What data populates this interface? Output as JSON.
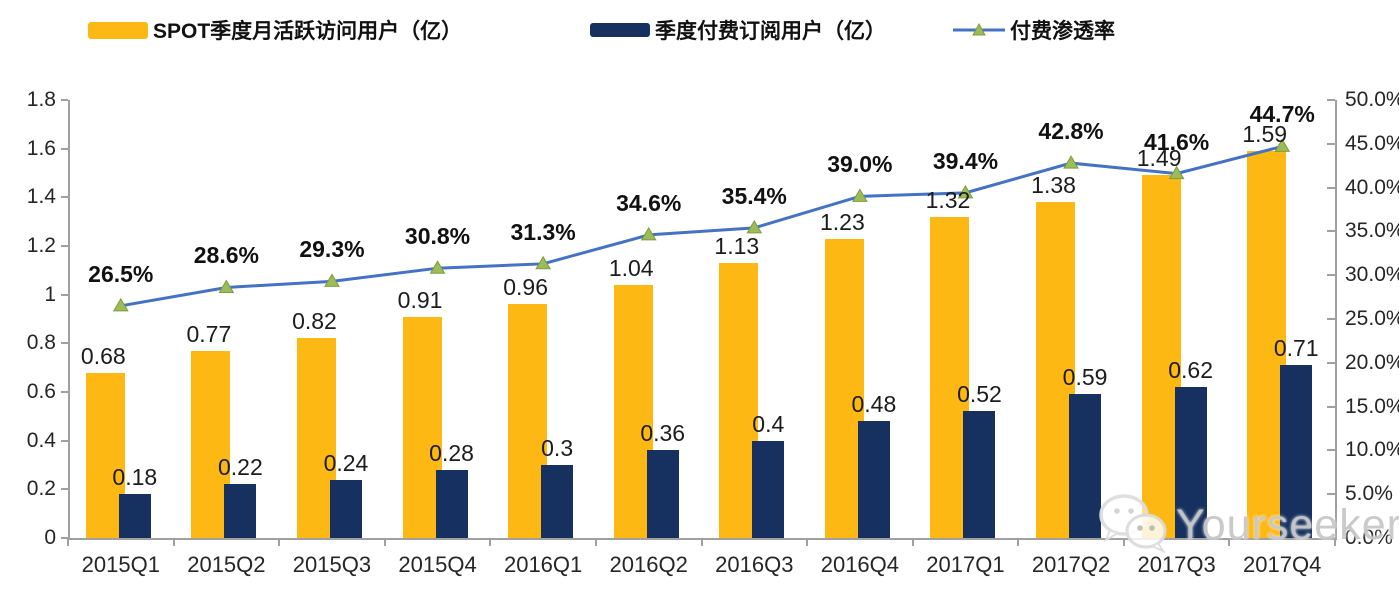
{
  "legend": [
    {
      "label": "SPOT季度月活跃访问用户（亿）",
      "color": "#FDB813",
      "type": "bar"
    },
    {
      "label": "季度付费订阅用户（亿）",
      "color": "#16305F",
      "type": "bar"
    },
    {
      "label": "付费渗透率",
      "color": "#4472C4",
      "marker_color": "#9CBB59",
      "type": "line"
    }
  ],
  "watermark": {
    "text": "Yourseeker",
    "icon": "wechat-icon"
  },
  "chart_data": {
    "type": "bar+line-combo",
    "title": "",
    "categories": [
      "2015Q1",
      "2015Q2",
      "2015Q3",
      "2015Q4",
      "2016Q1",
      "2016Q2",
      "2016Q3",
      "2016Q4",
      "2017Q1",
      "2017Q2",
      "2017Q3",
      "2017Q4"
    ],
    "series": [
      {
        "name": "SPOT季度月活跃访问用户（亿）",
        "type": "bar",
        "color": "#FDB813",
        "axis": "left",
        "values": [
          0.68,
          0.77,
          0.82,
          0.91,
          0.96,
          1.04,
          1.13,
          1.23,
          1.32,
          1.38,
          1.49,
          1.59
        ],
        "labels": [
          "0.68",
          "0.77",
          "0.82",
          "0.91",
          "0.96",
          "1.04",
          "1.13",
          "1.23",
          "1.32",
          "1.38",
          "1.49",
          "1.59"
        ]
      },
      {
        "name": "季度付费订阅用户（亿）",
        "type": "bar",
        "color": "#16305F",
        "axis": "left",
        "values": [
          0.18,
          0.22,
          0.24,
          0.28,
          0.3,
          0.36,
          0.4,
          0.48,
          0.52,
          0.59,
          0.62,
          0.71
        ],
        "labels": [
          "0.18",
          "0.22",
          "0.24",
          "0.28",
          "0.3",
          "0.36",
          "0.4",
          "0.48",
          "0.52",
          "0.59",
          "0.62",
          "0.71"
        ]
      },
      {
        "name": "付费渗透率",
        "type": "line",
        "color": "#4472C4",
        "marker": "triangle",
        "marker_color": "#9CBB59",
        "axis": "right",
        "values": [
          26.5,
          28.6,
          29.3,
          30.8,
          31.3,
          34.6,
          35.4,
          39.0,
          39.4,
          42.8,
          41.6,
          44.7
        ],
        "labels": [
          "26.5%",
          "28.6%",
          "29.3%",
          "30.8%",
          "31.3%",
          "34.6%",
          "35.4%",
          "39.0%",
          "39.4%",
          "42.8%",
          "41.6%",
          "44.7%"
        ]
      }
    ],
    "left_axis": {
      "min": 0,
      "max": 1.8,
      "ticks_bottom_up": [
        "0",
        "0.2",
        "0.4",
        "0.6",
        "0.8",
        "1",
        "1.2",
        "1.4",
        "1.6",
        "1.8"
      ]
    },
    "right_axis": {
      "min": 0,
      "max": 50,
      "ticks_bottom_up": [
        "0.0%",
        "5.0%",
        "10.0%",
        "15.0%",
        "20.0%",
        "25.0%",
        "30.0%",
        "35.0%",
        "40.0%",
        "45.0%",
        "50.0%"
      ]
    },
    "grid": false,
    "legend_position": "top"
  }
}
